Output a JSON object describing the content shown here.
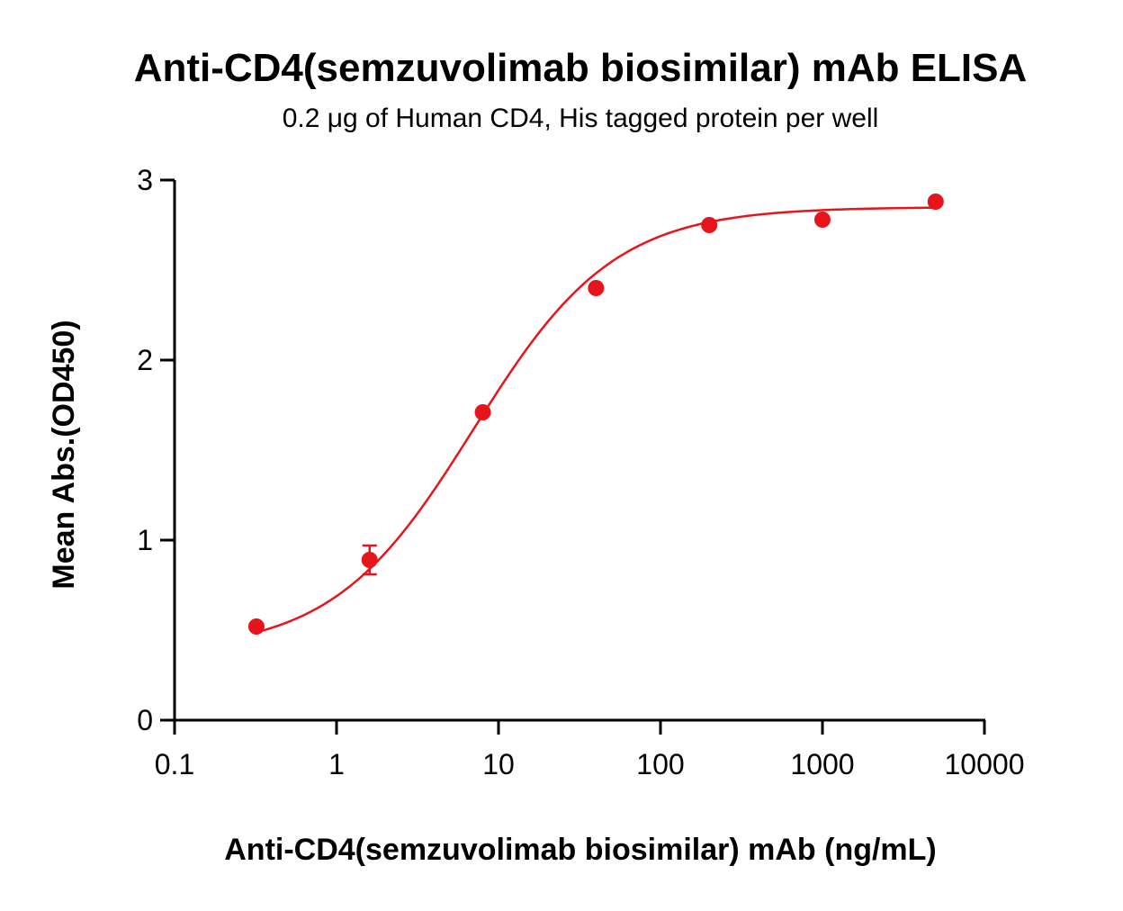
{
  "chart_data": {
    "type": "scatter",
    "title": "Anti-CD4(semzuvolimab biosimilar) mAb ELISA",
    "subtitle": "0.2 μg of Human CD4, His tagged protein per well",
    "xlabel": "Anti-CD4(semzuvolimab biosimilar) mAb (ng/mL)",
    "ylabel": "Mean Abs.(OD450)",
    "x_scale": "log",
    "xlim": [
      0.1,
      10000
    ],
    "ylim": [
      0,
      3
    ],
    "x_ticks": [
      {
        "value": 0.1,
        "label": "0.1"
      },
      {
        "value": 1,
        "label": "1"
      },
      {
        "value": 10,
        "label": "10"
      },
      {
        "value": 100,
        "label": "100"
      },
      {
        "value": 1000,
        "label": "1000"
      },
      {
        "value": 10000,
        "label": "10000"
      }
    ],
    "y_ticks": [
      {
        "value": 0,
        "label": "0"
      },
      {
        "value": 1,
        "label": "1"
      },
      {
        "value": 2,
        "label": "2"
      },
      {
        "value": 3,
        "label": "3"
      }
    ],
    "grid": false,
    "color": "#e8141c",
    "series": [
      {
        "points": [
          {
            "x": 0.32,
            "y": 0.52,
            "err": 0
          },
          {
            "x": 1.6,
            "y": 0.89,
            "err": 0.08
          },
          {
            "x": 8,
            "y": 1.71,
            "err": 0
          },
          {
            "x": 40,
            "y": 2.4,
            "err": 0
          },
          {
            "x": 200,
            "y": 2.75,
            "err": 0
          },
          {
            "x": 1000,
            "y": 2.78,
            "err": 0
          },
          {
            "x": 5000,
            "y": 2.88,
            "err": 0
          }
        ],
        "fit": {
          "model": "4PL",
          "bottom": 0.38,
          "top": 2.85,
          "ec50": 7.0,
          "hill": 1.0
        }
      }
    ]
  }
}
